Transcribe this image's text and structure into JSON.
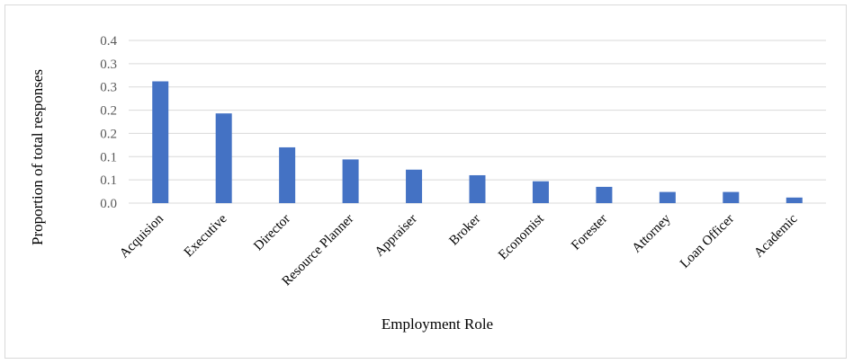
{
  "chart_data": {
    "type": "bar",
    "title": "",
    "xlabel": "Employment Role",
    "ylabel": "Proportion of total responses",
    "ylim": [
      0,
      0.35
    ],
    "y_tick_labels": [
      "0.0",
      "0.1",
      "0.1",
      "0.2",
      "0.2",
      "0.3",
      "0.3",
      "0.4"
    ],
    "grid": true,
    "legend": "none",
    "categories": [
      "Acquision",
      "Executive",
      "Director",
      "Resource Planner",
      "Appraiser",
      "Broker",
      "Economist",
      "Forester",
      "Attorney",
      "Loan Officer",
      "Academic"
    ],
    "values": [
      0.262,
      0.193,
      0.12,
      0.094,
      0.072,
      0.06,
      0.047,
      0.035,
      0.024,
      0.024,
      0.012
    ],
    "bar_color": "#4472c4",
    "grid_color": "#d9d9d9"
  }
}
